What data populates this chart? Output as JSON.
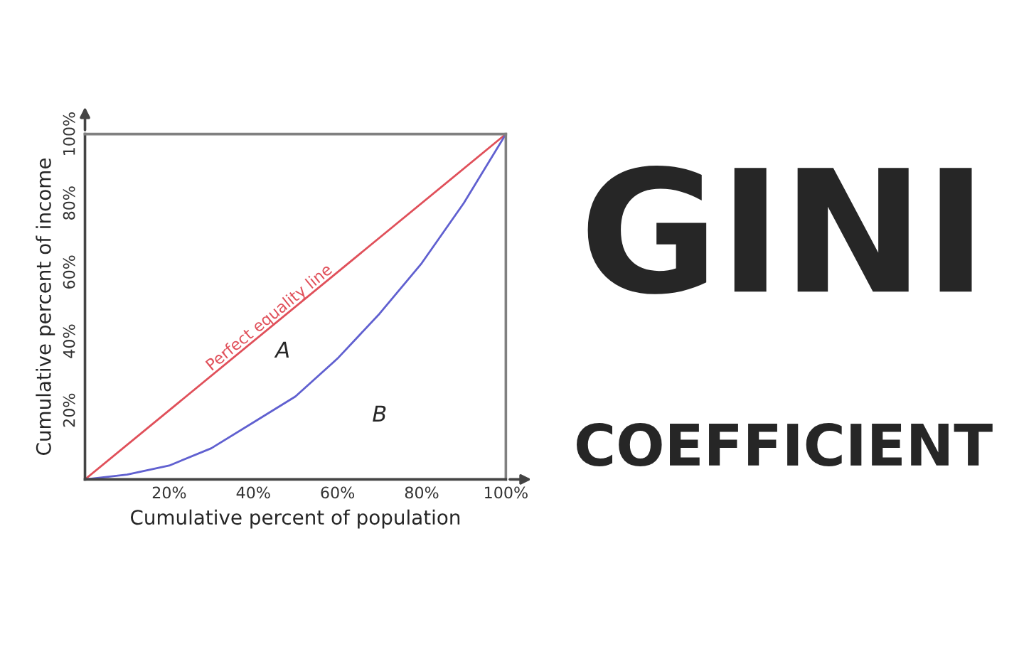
{
  "chart_data": {
    "type": "line",
    "title": "GINI",
    "subtitle": "COEFFICIENT",
    "xlabel": "Cumulative percent of population",
    "ylabel": "Cumulative percent of income",
    "x": [
      0,
      10,
      20,
      30,
      40,
      50,
      60,
      70,
      80,
      90,
      100
    ],
    "series": [
      {
        "name": "Perfect equality line",
        "color": "#e0505a",
        "x": [
          0,
          100
        ],
        "values": [
          0,
          100
        ]
      },
      {
        "color": "#6060d0",
        "values": [
          0,
          1.4,
          4,
          9,
          16.5,
          24,
          35,
          48,
          62.6,
          80,
          100
        ]
      }
    ],
    "annotations": [
      "A",
      "B"
    ],
    "xlim": [
      0,
      100
    ],
    "ylim": [
      0,
      100
    ],
    "xticks": [
      {
        "value": 20,
        "label": "20%"
      },
      {
        "value": 40,
        "label": "40%"
      },
      {
        "value": 60,
        "label": "60%"
      },
      {
        "value": 80,
        "label": "80%"
      },
      {
        "value": 100,
        "label": "100%"
      }
    ],
    "yticks": [
      {
        "value": 20,
        "label": "20%"
      },
      {
        "value": 40,
        "label": "40%"
      },
      {
        "value": 60,
        "label": "60%"
      },
      {
        "value": 80,
        "label": "80%"
      },
      {
        "value": 100,
        "label": "100%"
      }
    ],
    "grid": false,
    "legend": false,
    "marker": "none",
    "line_style": "solid"
  }
}
